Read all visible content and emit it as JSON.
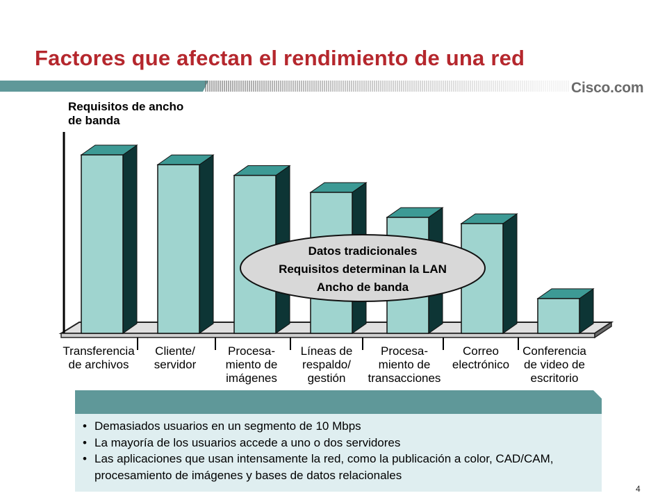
{
  "slide": {
    "title": "Factores que afectan el rendimiento de una red",
    "brand": "Cisco.com",
    "page_number": "4"
  },
  "colors": {
    "title": "#b5272d",
    "band_solid": "#5f9899",
    "band_stripes": "#6a6a6a",
    "bar_front": "#9fd4cf",
    "bar_top": "#3d9a95",
    "bar_side": "#0d3535",
    "floor": "#e0e0e0",
    "ellipse": "#d8d8d8",
    "box_header": "#5f9899",
    "box_body": "#dfeef0"
  },
  "chart_data": {
    "type": "bar",
    "title": "",
    "ylabel_lines": [
      "Requisitos de ancho",
      "de banda"
    ],
    "xlabel": "",
    "categories": [
      [
        "Transferencia",
        "de archivos"
      ],
      [
        "Cliente/",
        "servidor"
      ],
      [
        "Procesa-",
        "miento de",
        "imágenes"
      ],
      [
        "Líneas de",
        "respaldo/",
        "gestión"
      ],
      [
        "Procesa-",
        "miento de",
        "transacciones"
      ],
      [
        "Correo",
        "electrónico"
      ],
      [
        "Conferencia",
        "de video de",
        "escritorio"
      ]
    ],
    "values": [
      100,
      94.5,
      88.5,
      79,
      65,
      61.5,
      19.5
    ],
    "ylim": [
      0,
      100
    ],
    "grid": false,
    "annotation_lines": [
      "Datos tradicionales",
      "Requisitos determinan la LAN",
      "Ancho de banda"
    ]
  },
  "bullets": [
    "Demasiados usuarios en un segmento de 10 Mbps",
    "La mayoría de los usuarios accede a uno o dos servidores",
    "Las aplicaciones que usan intensamente la red, como la publicación a color, CAD/CAM, procesamiento de imágenes y bases de datos relacionales"
  ],
  "bullet_symbol": "•"
}
